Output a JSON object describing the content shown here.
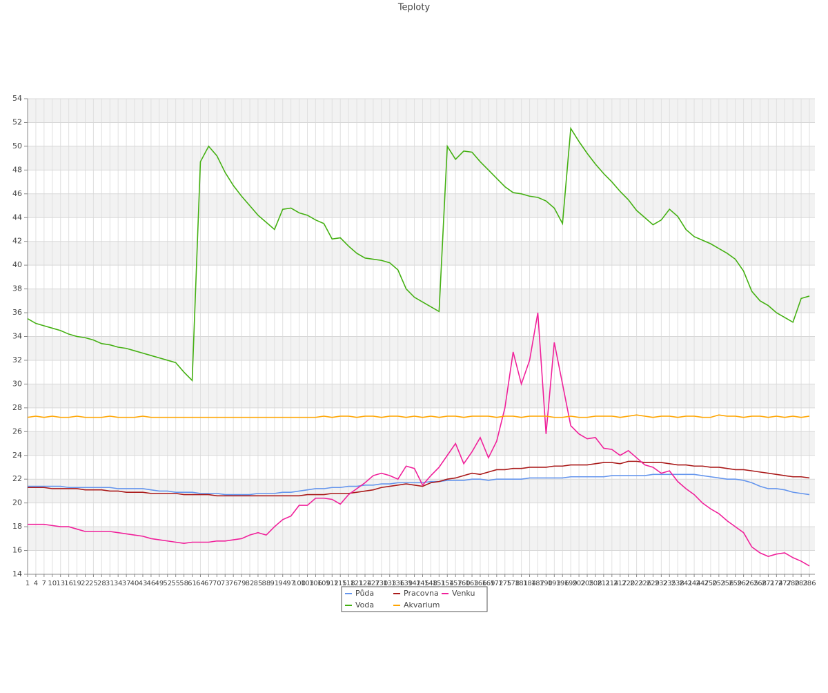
{
  "chart_data": {
    "type": "line",
    "title": "Teploty",
    "x": [
      1,
      4,
      7,
      10,
      13,
      16,
      19,
      22,
      25,
      28,
      31,
      34,
      37,
      40,
      43,
      46,
      49,
      52,
      55,
      58,
      61,
      64,
      67,
      70,
      73,
      76,
      79,
      82,
      85,
      88,
      91,
      94,
      97,
      100,
      103,
      106,
      109,
      112,
      115,
      118,
      121,
      124,
      127,
      130,
      133,
      136,
      139,
      142,
      145,
      148,
      151,
      154,
      157,
      160,
      163,
      166,
      169,
      172,
      175,
      178,
      181,
      184,
      187,
      190,
      193,
      196,
      199,
      202,
      205,
      208,
      211,
      214,
      217,
      220,
      223,
      226,
      229,
      232,
      235,
      238,
      241,
      244,
      247,
      250,
      253,
      256,
      259,
      262,
      265,
      268,
      271,
      274,
      277,
      280,
      283,
      286
    ],
    "xlim": [
      1,
      288
    ],
    "xticks": [
      1,
      4,
      7,
      10,
      13,
      16,
      19,
      22,
      25,
      28,
      31,
      34,
      37,
      40,
      43,
      46,
      49,
      52,
      55,
      58,
      61,
      64,
      67,
      70,
      73,
      76,
      79,
      82,
      85,
      88,
      91,
      94,
      97,
      100,
      103,
      106,
      109,
      112,
      115,
      118,
      121,
      124,
      127,
      130,
      133,
      136,
      139,
      142,
      145,
      148,
      151,
      154,
      157,
      160,
      163,
      166,
      169,
      172,
      175,
      178,
      181,
      184,
      187,
      190,
      193,
      196,
      199,
      202,
      205,
      208,
      211,
      214,
      217,
      220,
      223,
      226,
      229,
      232,
      235,
      238,
      241,
      244,
      247,
      250,
      253,
      256,
      259,
      262,
      265,
      268,
      271,
      274,
      277,
      280,
      283,
      286
    ],
    "ylim": [
      14,
      54
    ],
    "yticks": [
      14,
      16,
      18,
      20,
      22,
      24,
      26,
      28,
      30,
      32,
      34,
      36,
      38,
      40,
      42,
      44,
      46,
      48,
      50,
      52,
      54
    ],
    "grid": true,
    "legend": "bottom",
    "series": [
      {
        "name": "Půda",
        "color": "#6495ed",
        "values": [
          21.4,
          21.4,
          21.4,
          21.4,
          21.4,
          21.3,
          21.3,
          21.3,
          21.3,
          21.3,
          21.3,
          21.2,
          21.2,
          21.2,
          21.2,
          21.1,
          21.0,
          21.0,
          20.9,
          20.9,
          20.9,
          20.8,
          20.8,
          20.8,
          20.7,
          20.7,
          20.7,
          20.7,
          20.8,
          20.8,
          20.8,
          20.9,
          20.9,
          21.0,
          21.1,
          21.2,
          21.2,
          21.3,
          21.3,
          21.4,
          21.4,
          21.5,
          21.5,
          21.6,
          21.6,
          21.7,
          21.7,
          21.7,
          21.7,
          21.8,
          21.8,
          21.9,
          21.9,
          21.9,
          22.0,
          22.0,
          21.9,
          22.0,
          22.0,
          22.0,
          22.0,
          22.1,
          22.1,
          22.1,
          22.1,
          22.1,
          22.2,
          22.2,
          22.2,
          22.2,
          22.2,
          22.3,
          22.3,
          22.3,
          22.3,
          22.3,
          22.4,
          22.4,
          22.4,
          22.4,
          22.4,
          22.4,
          22.3,
          22.2,
          22.1,
          22.0,
          22.0,
          21.9,
          21.7,
          21.4,
          21.2,
          21.2,
          21.1,
          20.9,
          20.8,
          20.7
        ]
      },
      {
        "name": "Pracovna",
        "color": "#aa1a1a",
        "values": [
          21.3,
          21.3,
          21.3,
          21.2,
          21.2,
          21.2,
          21.2,
          21.1,
          21.1,
          21.1,
          21.0,
          21.0,
          20.9,
          20.9,
          20.9,
          20.8,
          20.8,
          20.8,
          20.8,
          20.7,
          20.7,
          20.7,
          20.7,
          20.6,
          20.6,
          20.6,
          20.6,
          20.6,
          20.6,
          20.6,
          20.6,
          20.6,
          20.6,
          20.6,
          20.7,
          20.7,
          20.7,
          20.8,
          20.8,
          20.8,
          20.9,
          21.0,
          21.1,
          21.3,
          21.4,
          21.5,
          21.6,
          21.5,
          21.4,
          21.7,
          21.8,
          22.0,
          22.1,
          22.3,
          22.5,
          22.4,
          22.6,
          22.8,
          22.8,
          22.9,
          22.9,
          23.0,
          23.0,
          23.0,
          23.1,
          23.1,
          23.2,
          23.2,
          23.2,
          23.3,
          23.4,
          23.4,
          23.3,
          23.5,
          23.5,
          23.4,
          23.4,
          23.4,
          23.3,
          23.2,
          23.2,
          23.1,
          23.1,
          23.0,
          23.0,
          22.9,
          22.8,
          22.8,
          22.7,
          22.6,
          22.5,
          22.4,
          22.3,
          22.2,
          22.2,
          22.1
        ]
      },
      {
        "name": "Venku",
        "color": "#f0209a",
        "values": [
          18.2,
          18.2,
          18.2,
          18.1,
          18.0,
          18.0,
          17.8,
          17.6,
          17.6,
          17.6,
          17.6,
          17.5,
          17.4,
          17.3,
          17.2,
          17.0,
          16.9,
          16.8,
          16.7,
          16.6,
          16.7,
          16.7,
          16.7,
          16.8,
          16.8,
          16.9,
          17.0,
          17.3,
          17.5,
          17.3,
          18.0,
          18.6,
          18.9,
          19.8,
          19.8,
          20.4,
          20.4,
          20.3,
          19.9,
          20.7,
          21.2,
          21.7,
          22.3,
          22.5,
          22.3,
          22.0,
          23.1,
          22.9,
          21.5,
          22.3,
          23.0,
          24.0,
          25.0,
          23.3,
          24.3,
          25.5,
          23.8,
          25.2,
          28.0,
          32.7,
          30.0,
          32.0,
          36.0,
          25.8,
          33.5,
          30.0,
          26.5,
          25.8,
          25.4,
          25.5,
          24.6,
          24.5,
          24.0,
          24.4,
          23.8,
          23.2,
          23.0,
          22.5,
          22.7,
          21.8,
          21.2,
          20.7,
          20.0,
          19.5,
          19.1,
          18.5,
          18.0,
          17.5,
          16.3,
          15.8,
          15.5,
          15.7,
          15.8,
          15.4,
          15.1,
          14.7
        ]
      },
      {
        "name": "Voda",
        "color": "#44b012",
        "values": [
          35.5,
          35.1,
          34.9,
          34.7,
          34.5,
          34.2,
          34.0,
          33.9,
          33.7,
          33.4,
          33.3,
          33.1,
          33.0,
          32.8,
          32.6,
          32.4,
          32.2,
          32.0,
          31.8,
          31.0,
          30.3,
          48.7,
          50.0,
          49.2,
          47.8,
          46.7,
          45.8,
          45.0,
          44.2,
          43.6,
          43.0,
          44.7,
          44.8,
          44.4,
          44.2,
          43.8,
          43.5,
          42.2,
          42.3,
          41.6,
          41.0,
          40.6,
          40.5,
          40.4,
          40.2,
          39.6,
          38.0,
          37.3,
          36.9,
          36.5,
          36.1,
          50.0,
          48.9,
          49.6,
          49.5,
          48.7,
          48.0,
          47.3,
          46.6,
          46.1,
          46.0,
          45.8,
          45.7,
          45.4,
          44.8,
          43.5,
          51.5,
          50.4,
          49.4,
          48.5,
          47.7,
          47.0,
          46.2,
          45.5,
          44.6,
          44.0,
          43.4,
          43.8,
          44.7,
          44.1,
          43.0,
          42.4,
          42.1,
          41.8,
          41.4,
          41.0,
          40.5,
          39.5,
          37.8,
          37.0,
          36.6,
          36.0,
          35.6,
          35.2,
          37.2,
          37.4
        ]
      },
      {
        "name": "Akvarium",
        "color": "#ffa500",
        "values": [
          27.2,
          27.3,
          27.2,
          27.3,
          27.2,
          27.2,
          27.3,
          27.2,
          27.2,
          27.2,
          27.3,
          27.2,
          27.2,
          27.2,
          27.3,
          27.2,
          27.2,
          27.2,
          27.2,
          27.2,
          27.2,
          27.2,
          27.2,
          27.2,
          27.2,
          27.2,
          27.2,
          27.2,
          27.2,
          27.2,
          27.2,
          27.2,
          27.2,
          27.2,
          27.2,
          27.2,
          27.3,
          27.2,
          27.3,
          27.3,
          27.2,
          27.3,
          27.3,
          27.2,
          27.3,
          27.3,
          27.2,
          27.3,
          27.2,
          27.3,
          27.2,
          27.3,
          27.3,
          27.2,
          27.3,
          27.3,
          27.3,
          27.2,
          27.3,
          27.3,
          27.2,
          27.3,
          27.3,
          27.3,
          27.2,
          27.2,
          27.3,
          27.2,
          27.2,
          27.3,
          27.3,
          27.3,
          27.2,
          27.3,
          27.4,
          27.3,
          27.2,
          27.3,
          27.3,
          27.2,
          27.3,
          27.3,
          27.2,
          27.2,
          27.4,
          27.3,
          27.3,
          27.2,
          27.3,
          27.3,
          27.2,
          27.3,
          27.2,
          27.3,
          27.2,
          27.3
        ]
      }
    ]
  }
}
